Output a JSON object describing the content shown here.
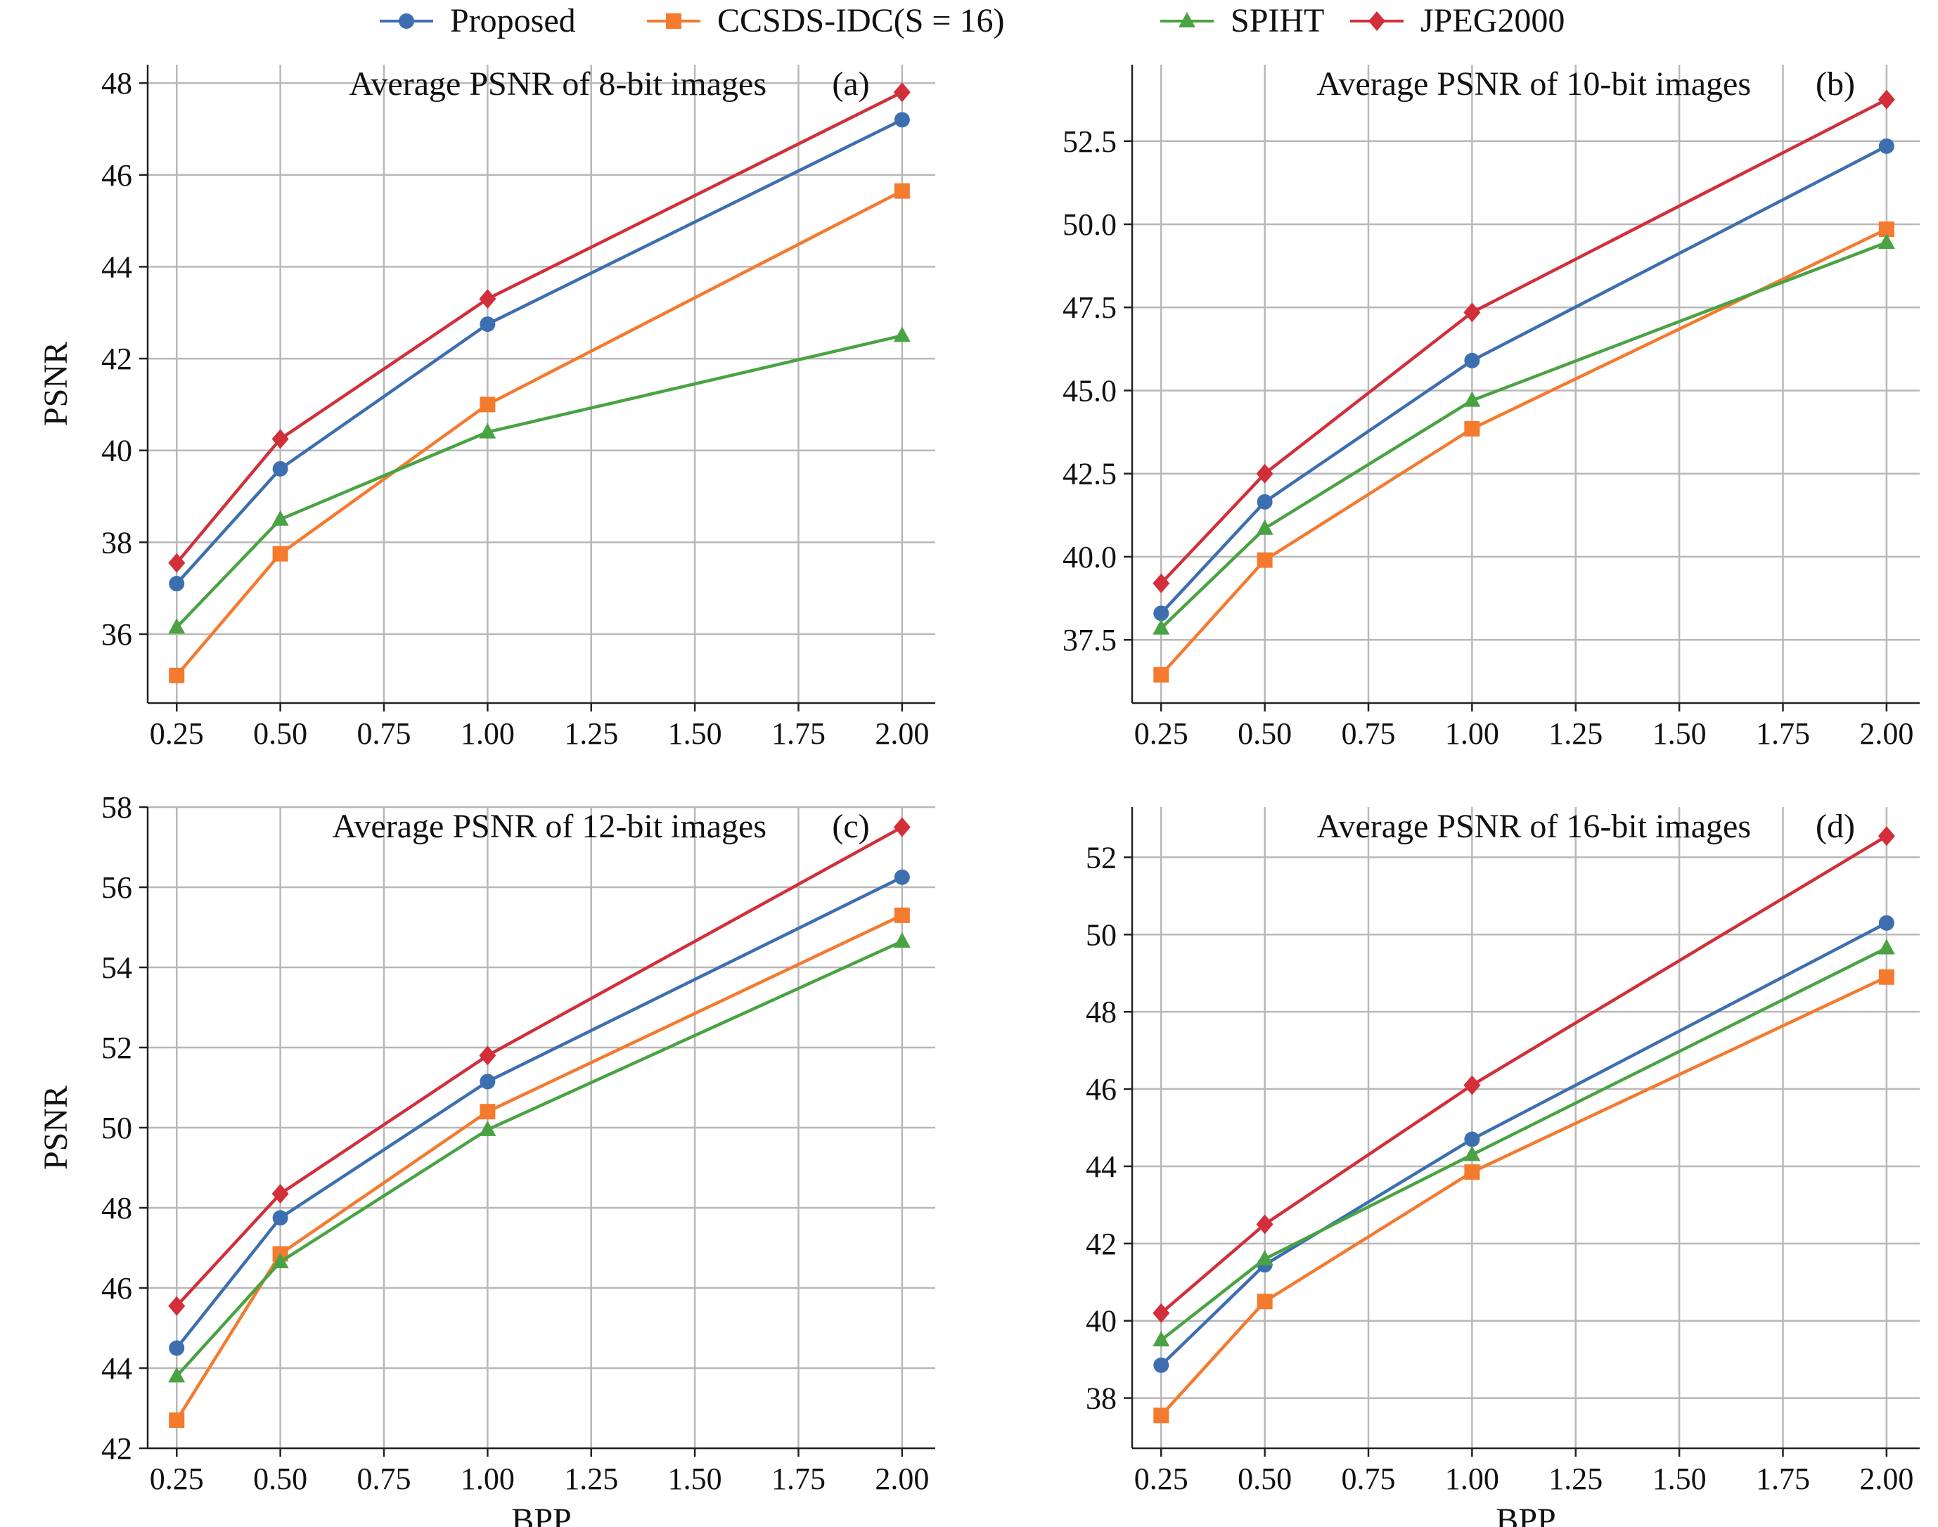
{
  "legend": [
    {
      "name": "Proposed",
      "color": "#3d6fb0",
      "marker": "circle"
    },
    {
      "name": "CCSDS-IDC(S = 16)",
      "color": "#f47a2e",
      "marker": "square"
    },
    {
      "name": "SPIHT",
      "color": "#4aa343",
      "marker": "triangle"
    },
    {
      "name": "JPEG2000",
      "color": "#d22f3a",
      "marker": "diamond"
    }
  ],
  "chart_data": [
    {
      "type": "line",
      "title": "Average PSNR of 8-bit images",
      "panel_tag": "(a)",
      "xlabel": "",
      "ylabel": "PSNR",
      "x": [
        0.25,
        0.5,
        1.0,
        2.0
      ],
      "xlim": [
        0.18,
        2.08
      ],
      "xticks": [
        "0.25",
        "0.50",
        "0.75",
        "1.00",
        "1.25",
        "1.50",
        "1.75",
        "2.00"
      ],
      "ylim": [
        34.5,
        48.4
      ],
      "yticks": [
        "36",
        "38",
        "40",
        "42",
        "44",
        "46",
        "48"
      ],
      "grid": true,
      "series": [
        {
          "name": "Proposed",
          "values": [
            37.1,
            39.6,
            42.75,
            47.2
          ]
        },
        {
          "name": "CCSDS-IDC(S = 16)",
          "values": [
            35.1,
            37.75,
            41.0,
            45.65
          ]
        },
        {
          "name": "SPIHT",
          "values": [
            36.15,
            38.5,
            40.4,
            42.5
          ]
        },
        {
          "name": "JPEG2000",
          "values": [
            37.55,
            40.25,
            43.3,
            47.8
          ]
        }
      ]
    },
    {
      "type": "line",
      "title": "Average PSNR of 10-bit images",
      "panel_tag": "(b)",
      "xlabel": "",
      "ylabel": "",
      "x": [
        0.25,
        0.5,
        1.0,
        2.0
      ],
      "xlim": [
        0.18,
        2.08
      ],
      "xticks": [
        "0.25",
        "0.50",
        "0.75",
        "1.00",
        "1.25",
        "1.50",
        "1.75",
        "2.00"
      ],
      "ylim": [
        35.6,
        54.8
      ],
      "yticks": [
        "37.5",
        "40.0",
        "42.5",
        "45.0",
        "47.5",
        "50.0",
        "52.5"
      ],
      "grid": true,
      "series": [
        {
          "name": "Proposed",
          "values": [
            38.3,
            41.65,
            45.9,
            52.35
          ]
        },
        {
          "name": "CCSDS-IDC(S = 16)",
          "values": [
            36.45,
            39.9,
            43.85,
            49.85
          ]
        },
        {
          "name": "SPIHT",
          "values": [
            37.85,
            40.85,
            44.7,
            49.45
          ]
        },
        {
          "name": "JPEG2000",
          "values": [
            39.2,
            42.5,
            47.35,
            53.75
          ]
        }
      ]
    },
    {
      "type": "line",
      "title": "Average PSNR of 12-bit images",
      "panel_tag": "(c)",
      "xlabel": "BPP",
      "ylabel": "PSNR",
      "x": [
        0.25,
        0.5,
        1.0,
        2.0
      ],
      "xlim": [
        0.18,
        2.08
      ],
      "xticks": [
        "0.25",
        "0.50",
        "0.75",
        "1.00",
        "1.25",
        "1.50",
        "1.75",
        "2.00"
      ],
      "ylim": [
        42.0,
        58.0
      ],
      "yticks": [
        "42",
        "44",
        "46",
        "48",
        "50",
        "52",
        "54",
        "56",
        "58"
      ],
      "grid": true,
      "series": [
        {
          "name": "Proposed",
          "values": [
            44.5,
            47.75,
            51.15,
            56.25
          ]
        },
        {
          "name": "CCSDS-IDC(S = 16)",
          "values": [
            42.7,
            46.85,
            50.4,
            55.3
          ]
        },
        {
          "name": "SPIHT",
          "values": [
            43.8,
            46.65,
            49.95,
            54.65
          ]
        },
        {
          "name": "JPEG2000",
          "values": [
            45.55,
            48.35,
            51.8,
            57.5
          ]
        }
      ]
    },
    {
      "type": "line",
      "title": "Average PSNR of 16-bit images",
      "panel_tag": "(d)",
      "xlabel": "BPP",
      "ylabel": "",
      "x": [
        0.25,
        0.5,
        1.0,
        2.0
      ],
      "xlim": [
        0.18,
        2.08
      ],
      "xticks": [
        "0.25",
        "0.50",
        "0.75",
        "1.00",
        "1.25",
        "1.50",
        "1.75",
        "2.00"
      ],
      "ylim": [
        36.7,
        53.3
      ],
      "yticks": [
        "38",
        "40",
        "42",
        "44",
        "46",
        "48",
        "50",
        "52"
      ],
      "grid": true,
      "series": [
        {
          "name": "Proposed",
          "values": [
            38.85,
            41.45,
            44.7,
            50.3
          ]
        },
        {
          "name": "CCSDS-IDC(S = 16)",
          "values": [
            37.55,
            40.5,
            43.85,
            48.9
          ]
        },
        {
          "name": "SPIHT",
          "values": [
            39.5,
            41.6,
            44.3,
            49.65
          ]
        },
        {
          "name": "JPEG2000",
          "values": [
            40.2,
            42.5,
            46.1,
            52.55
          ]
        }
      ]
    }
  ]
}
